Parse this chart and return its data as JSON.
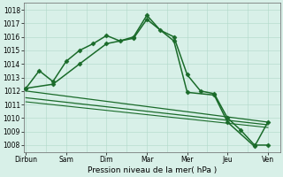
{
  "xlabel": "Pression niveau de la mer( hPa )",
  "ylim": [
    1007.5,
    1018.5
  ],
  "yticks": [
    1008,
    1009,
    1010,
    1011,
    1012,
    1013,
    1014,
    1015,
    1016,
    1017,
    1018
  ],
  "background_color": "#d8f0e8",
  "grid_color": "#b0d8c8",
  "line_color": "#1a6b2a",
  "series": [
    {
      "x": [
        0,
        0.33,
        0.67,
        1.0,
        1.33,
        1.67,
        2.0,
        2.33,
        2.67,
        3.0,
        3.33,
        3.67,
        4.0,
        4.33,
        4.67,
        5.0,
        5.33,
        5.67,
        6.0
      ],
      "y": [
        1012.2,
        1013.5,
        1012.7,
        1014.2,
        1015.0,
        1015.5,
        1016.1,
        1015.7,
        1016.0,
        1017.6,
        1016.5,
        1016.0,
        1013.2,
        1012.0,
        1011.8,
        1010.0,
        1009.1,
        1008.0,
        1008.0
      ],
      "marker": "D",
      "markersize": 2.5,
      "linewidth": 1.1,
      "linestyle": "-"
    },
    {
      "x": [
        0,
        0.67,
        1.33,
        2.0,
        2.67,
        3.0,
        3.67,
        4.0,
        4.67,
        5.0,
        5.67,
        6.0
      ],
      "y": [
        1012.2,
        1012.5,
        1014.0,
        1015.5,
        1015.9,
        1017.3,
        1015.7,
        1011.9,
        1011.7,
        1009.7,
        1007.9,
        1009.7
      ],
      "marker": "D",
      "markersize": 2.5,
      "linewidth": 1.1,
      "linestyle": "-"
    },
    {
      "x": [
        0,
        6.0
      ],
      "y": [
        1012.0,
        1009.7
      ],
      "marker": null,
      "markersize": 0,
      "linewidth": 0.9,
      "linestyle": "-"
    },
    {
      "x": [
        0,
        6.0
      ],
      "y": [
        1011.5,
        1009.5
      ],
      "marker": null,
      "markersize": 0,
      "linewidth": 0.9,
      "linestyle": "-"
    },
    {
      "x": [
        0,
        6.0
      ],
      "y": [
        1011.2,
        1009.3
      ],
      "marker": null,
      "markersize": 0,
      "linewidth": 0.8,
      "linestyle": "-"
    }
  ],
  "xtick_positions": [
    0,
    1.0,
    2.0,
    3.0,
    4.0,
    5.0,
    6.0
  ],
  "xtick_labels": [
    "Dirbun",
    "Sam",
    "Dim",
    "Mar",
    "Mer",
    "Jeu",
    "Ven"
  ],
  "figsize": [
    3.2,
    2.0
  ],
  "dpi": 100
}
